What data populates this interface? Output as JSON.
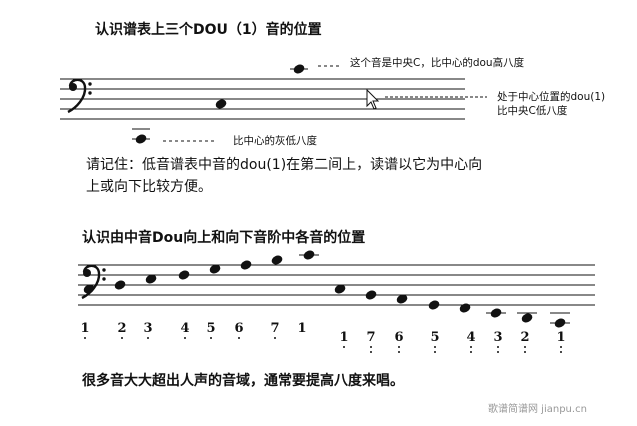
{
  "section1": {
    "title": "认识谱表上三个DOU（1）音的位置",
    "label_high": "这个音是中央C，比中心的dou高八度",
    "label_center_1": "处于中心位置的dou(1)",
    "label_center_2": "比中央C低八度",
    "label_low": "比中心的灰低八度",
    "note_line_1": "请记住：低音谱表中音的dou(1)在第二间上，读谱以它为中心向",
    "note_line_2": "上或向下比较方便。"
  },
  "section2": {
    "title": "认识由中音Dou向上和向下音阶中各音的位置",
    "ascending": [
      {
        "num": "1",
        "dots_below": 1
      },
      {
        "num": "2",
        "dots_below": 1
      },
      {
        "num": "3",
        "dots_below": 1
      },
      {
        "num": "4",
        "dots_below": 1
      },
      {
        "num": "5",
        "dots_below": 1
      },
      {
        "num": "6",
        "dots_below": 1
      },
      {
        "num": "7",
        "dots_below": 1
      },
      {
        "num": "1",
        "dots_below": 0
      }
    ],
    "descending": [
      {
        "num": "1",
        "dots_below": 1
      },
      {
        "num": "7",
        "dots_below": 2
      },
      {
        "num": "6",
        "dots_below": 2
      },
      {
        "num": "5",
        "dots_below": 2
      },
      {
        "num": "4",
        "dots_below": 2
      },
      {
        "num": "3",
        "dots_below": 2
      },
      {
        "num": "2",
        "dots_below": 2
      },
      {
        "num": "1",
        "dots_below": 2
      }
    ],
    "footer": "很多音大大超出人声的音域，通常要提高八度来唱。"
  },
  "watermark": "歌谱简谱网 jianpu.cn",
  "colors": {
    "ink": "#111111",
    "watermark": "#999999"
  }
}
